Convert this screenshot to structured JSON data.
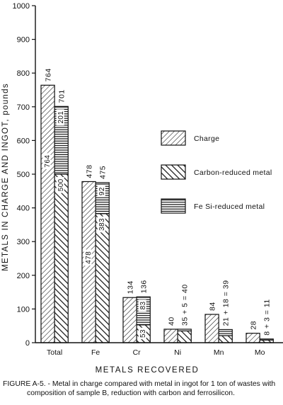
{
  "chart_data": {
    "type": "bar",
    "ylabel": "METALS IN CHARGE AND INGOT, pounds",
    "xlabel": "METALS RECOVERED",
    "ylim": [
      0,
      1000
    ],
    "yticks": [
      0,
      100,
      200,
      300,
      400,
      500,
      600,
      700,
      800,
      900,
      1000
    ],
    "ytick_labels": [
      "0",
      "100",
      "200",
      "300",
      "400",
      "500",
      "600",
      "700",
      "800",
      "900",
      "1000"
    ],
    "categories": [
      "Total",
      "Fe",
      "Cr",
      "Ni",
      "Mn",
      "Mo"
    ],
    "series": [
      {
        "name": "Charge",
        "values": [
          764,
          478,
          134,
          40,
          84,
          28
        ]
      },
      {
        "name": "Carbon-reduced metal",
        "values": [
          500,
          383,
          53,
          35,
          21,
          8
        ]
      },
      {
        "name": "Fe Si-reduced metal",
        "values": [
          201,
          92,
          83,
          5,
          18,
          3
        ]
      }
    ],
    "ingot_top_labels": [
      "701",
      "475",
      "136",
      "35 + 5 = 40",
      "21 + 18 = 39",
      "8 + 3 = 11"
    ],
    "charge_top_labels": [
      "764",
      "478",
      "134",
      "40",
      "84",
      "28"
    ],
    "charge_inner_labels": [
      "764",
      "478",
      "134",
      "40",
      "84",
      "28"
    ],
    "carbon_inner_labels": [
      "500",
      "383",
      "53",
      "",
      "",
      ""
    ],
    "fesi_inner_labels": [
      "201",
      "92",
      "83",
      "",
      "",
      ""
    ],
    "legend_position": "right",
    "legend": [
      "Charge",
      "Carbon-reduced metal",
      "Fe Si-reduced metal"
    ]
  },
  "caption": {
    "line1": "FIGURE A-5. - Metal in charge compared with metal in ingot for 1 ton of wastes with",
    "line2": "composition of sample B, reduction with carbon and ferrosilicon."
  }
}
